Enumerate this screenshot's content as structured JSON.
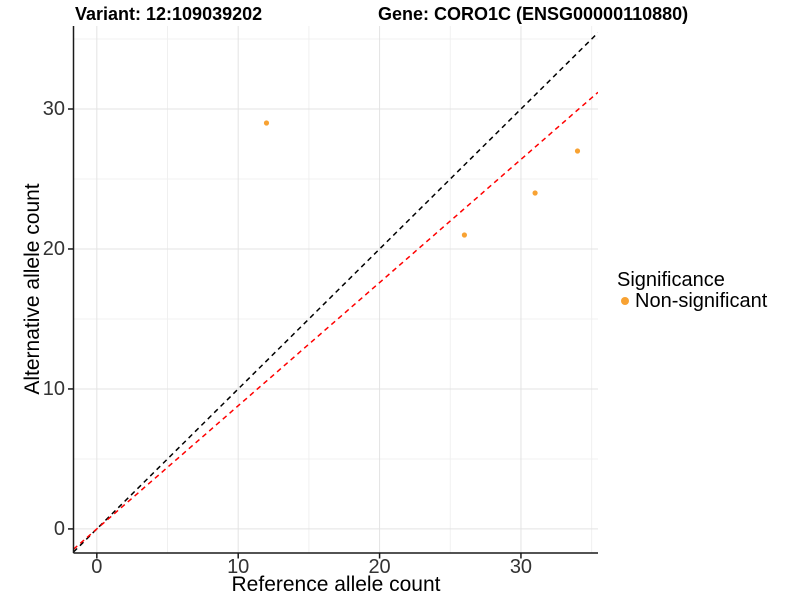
{
  "chart_data": {
    "type": "scatter",
    "title_left": "Variant: 12:109039202",
    "title_right": "Gene: CORO1C (ENSG00000110880)",
    "xlabel": "Reference allele count",
    "ylabel": "Alternative allele count",
    "xlim": [
      -1.65,
      35.45
    ],
    "ylim": [
      -1.72,
      35.93
    ],
    "xticks": [
      0,
      10,
      20,
      30
    ],
    "yticks": [
      0,
      10,
      20,
      30
    ],
    "xminor": [
      5,
      15,
      25,
      35
    ],
    "yminor": [
      5,
      15,
      25,
      35
    ],
    "grid": "on",
    "legend_position": "right",
    "series": [
      {
        "name": "Non-significant",
        "color": "#F8A232",
        "points": [
          {
            "x": 12,
            "y": 29
          },
          {
            "x": 26,
            "y": 21
          },
          {
            "x": 31,
            "y": 24
          },
          {
            "x": 34,
            "y": 27
          }
        ]
      }
    ],
    "reference_lines": [
      {
        "name": "identity",
        "slope": 1,
        "intercept": 0,
        "color": "#000000",
        "style": "dashed"
      },
      {
        "name": "fit",
        "slope": 0.88,
        "intercept": 0,
        "color": "#FF0000",
        "style": "dashed"
      }
    ],
    "legend": {
      "title": "Significance",
      "entries": [
        {
          "label": "Non-significant",
          "color": "#F8A232"
        }
      ]
    },
    "colors": {
      "background": "#FFFFFF",
      "grid_major": "#E3E3E3",
      "grid_minor": "#F0F0F0",
      "axis": "#1A1A1A",
      "tick_label": "#333333",
      "point": "#F8A232",
      "identity_line": "#000000",
      "fit_line": "#FF0000"
    }
  }
}
